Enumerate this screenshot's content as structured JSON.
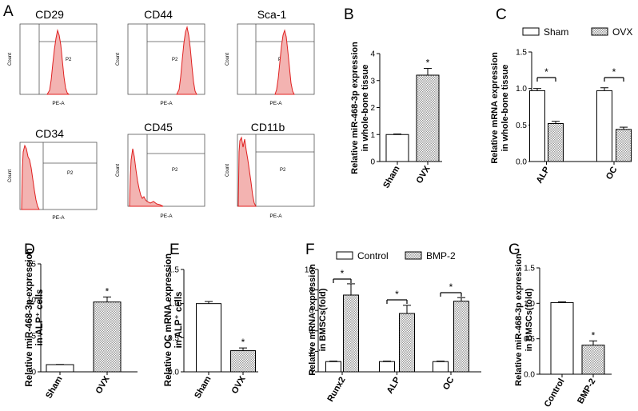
{
  "panel_letters": [
    "A",
    "B",
    "C",
    "D",
    "E",
    "F",
    "G"
  ],
  "flow": {
    "count_label": "Count",
    "x_label": "PE-A",
    "gate_label": "P2",
    "panels": [
      {
        "marker": "CD29"
      },
      {
        "marker": "CD44"
      },
      {
        "marker": "Sca-1"
      },
      {
        "marker": "CD34"
      },
      {
        "marker": "CD45"
      },
      {
        "marker": "CD11b"
      }
    ]
  },
  "colors": {
    "hist_fill": "#f3b3b1",
    "hist_line": "#e02020",
    "ink": "#000000",
    "hatch": "#bdbdbd"
  },
  "chart_data": [
    {
      "id": "B",
      "type": "bar",
      "categories": [
        "Sham",
        "OVX"
      ],
      "values": [
        1.0,
        3.2
      ],
      "errors": [
        0.02,
        0.25
      ],
      "patterns": [
        "plain",
        "hatch"
      ],
      "stars": [
        "",
        "*"
      ],
      "ylabel": [
        "Relative miR-468-3p expression",
        "in whole-bone tissue"
      ],
      "ylim": [
        0,
        4
      ],
      "yticks": [
        "0",
        "1",
        "2",
        "3",
        "4"
      ],
      "ytick_values": [
        0,
        1,
        2,
        3,
        4
      ]
    },
    {
      "id": "C",
      "type": "bar",
      "groups": [
        "ALP",
        "OC"
      ],
      "series": [
        {
          "name": "Sham",
          "values": [
            0.97,
            0.97
          ],
          "errors": [
            0.03,
            0.04
          ]
        },
        {
          "name": "OVX",
          "values": [
            0.52,
            0.44
          ],
          "errors": [
            0.03,
            0.03
          ]
        }
      ],
      "stars": [
        "*",
        "*"
      ],
      "ylabel": [
        "Relative mRNA expression",
        "in whole-bone tissue"
      ],
      "ylim": [
        0,
        1.5
      ],
      "yticks": [
        "0.0",
        "0.5",
        "1.0",
        "1.5"
      ],
      "ytick_values": [
        0,
        0.5,
        1.0,
        1.5
      ]
    },
    {
      "id": "D",
      "type": "bar",
      "categories": [
        "Sham",
        "OVX"
      ],
      "values": [
        1.0,
        9.7
      ],
      "errors": [
        0.03,
        0.7
      ],
      "patterns": [
        "plain",
        "hatch"
      ],
      "stars": [
        "",
        "*"
      ],
      "ylabel": [
        "Relative miR-468-3p expression",
        "in ALP⁺ cells"
      ],
      "ylim": [
        0,
        15
      ],
      "yticks": [
        "0",
        "5",
        "10",
        "15"
      ],
      "ytick_values": [
        0,
        5,
        10,
        15
      ]
    },
    {
      "id": "E",
      "type": "bar",
      "categories": [
        "Sham",
        "OVX"
      ],
      "values": [
        1.0,
        0.31
      ],
      "errors": [
        0.03,
        0.04
      ],
      "patterns": [
        "plain",
        "hatch"
      ],
      "stars": [
        "",
        "*"
      ],
      "ylabel": [
        "Relative OC mRNA expression",
        "in ALP⁺ cells"
      ],
      "ylim": [
        0,
        1.5
      ],
      "yticks": [
        "0.0",
        "0.5",
        "1.0",
        "1.5"
      ],
      "ytick_values": [
        0,
        0.5,
        1.0,
        1.5
      ]
    },
    {
      "id": "F",
      "type": "bar",
      "groups": [
        "Runx2",
        "ALP",
        "OC"
      ],
      "series": [
        {
          "name": "Control",
          "values": [
            1.0,
            1.0,
            1.0
          ],
          "errors": [
            0.05,
            0.05,
            0.05
          ]
        },
        {
          "name": "BMP-2",
          "values": [
            7.5,
            5.7,
            6.9
          ],
          "errors": [
            1.1,
            0.8,
            0.35
          ]
        }
      ],
      "stars": [
        "*",
        "*",
        "*"
      ],
      "ylabel": [
        "Relative mRNA expression",
        "in BMSCs(fold)"
      ],
      "ylim": [
        0,
        10
      ],
      "yticks": [
        "0",
        "2",
        "4",
        "6",
        "8",
        "10"
      ],
      "ytick_values": [
        0,
        2,
        4,
        6,
        8,
        10
      ]
    },
    {
      "id": "G",
      "type": "bar",
      "categories": [
        "Control",
        "BMP-2"
      ],
      "values": [
        1.01,
        0.41
      ],
      "errors": [
        0.01,
        0.06
      ],
      "patterns": [
        "plain",
        "hatch"
      ],
      "stars": [
        "",
        "*"
      ],
      "ylabel": [
        "Relative miR-468-3p expression",
        "in BMSCs(fold)"
      ],
      "ylim": [
        0,
        1.5
      ],
      "yticks": [
        "0.0",
        "0.5",
        "1.0",
        "1.5"
      ],
      "ytick_values": [
        0,
        0.5,
        1.0,
        1.5
      ]
    }
  ]
}
